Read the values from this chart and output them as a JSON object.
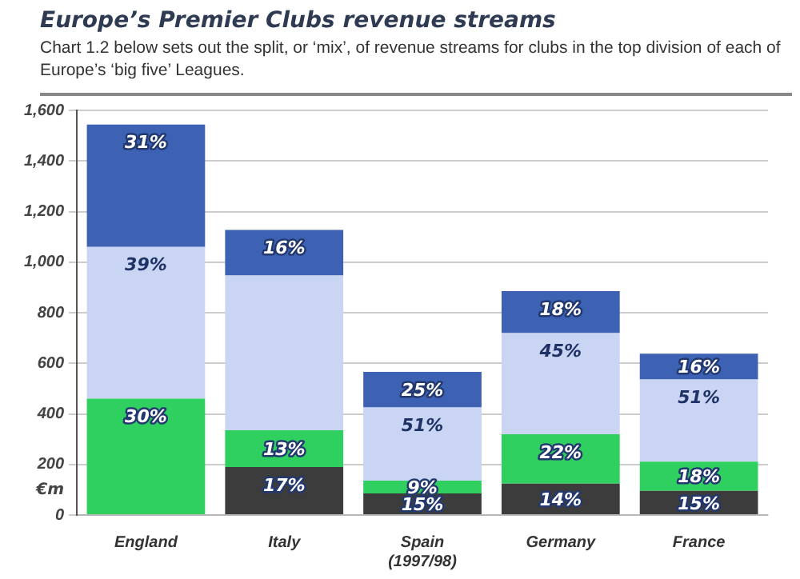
{
  "chart_data": {
    "type": "bar",
    "title": "Europe’s Premier Clubs revenue streams",
    "subtitle": "Chart 1.2 below sets out the split, or ‘mix’, of revenue streams for clubs in the top division of each of Europe’s ‘big five’ Leagues.",
    "ylabel": "€m",
    "categories": [
      "England",
      "Italy",
      "Spain (1997/98)",
      "Germany",
      "France"
    ],
    "stacked": true,
    "series": [
      {
        "color": "#3c3c3c",
        "values": [
          null,
          190,
          85,
          124,
          96
        ]
      },
      {
        "color": "#2fd060",
        "values": [
          460,
          145,
          51,
          195,
          115
        ]
      },
      {
        "color": "#c9d5f2",
        "values": [
          600,
          612,
          289,
          400,
          325
        ]
      },
      {
        "color": "#3d62b4",
        "values": [
          484,
          180,
          141,
          166,
          102
        ]
      }
    ],
    "annotations": [
      {
        "text": "31%",
        "x": "England",
        "y": 1544
      },
      {
        "text": "39%",
        "x": "England",
        "y": 1060
      },
      {
        "text": "30%",
        "x": "England",
        "y": 460
      },
      {
        "text": "16%",
        "x": "Italy",
        "y": 1127
      },
      {
        "text": "13%",
        "x": "Italy",
        "y": 335
      },
      {
        "text": "17%",
        "x": "Italy",
        "y": 190
      },
      {
        "text": "25%",
        "x": "Spain (1997/98)",
        "y": 566
      },
      {
        "text": "51%",
        "x": "Spain (1997/98)",
        "y": 425
      },
      {
        "text": "9%",
        "x": "Spain (1997/98)",
        "y": 136
      },
      {
        "text": "15%",
        "x": "Spain (1997/98)",
        "y": 85
      },
      {
        "text": "18%",
        "x": "Germany",
        "y": 885
      },
      {
        "text": "45%",
        "x": "Germany",
        "y": 719
      },
      {
        "text": "22%",
        "x": "Germany",
        "y": 319
      },
      {
        "text": "14%",
        "x": "Germany",
        "y": 124
      },
      {
        "text": "16%",
        "x": "France",
        "y": 638
      },
      {
        "text": "51%",
        "x": "France",
        "y": 536
      },
      {
        "text": "18%",
        "x": "France",
        "y": 211
      },
      {
        "text": "15%",
        "x": "France",
        "y": 96
      }
    ],
    "ylim": [
      0,
      1600
    ],
    "yticks": [
      0,
      {
        "value": 200,
        "label": "200"
      },
      {
        "value": 400,
        "label": "400"
      },
      {
        "value": 600,
        "label": "600"
      },
      {
        "value": 800,
        "label": "800"
      },
      {
        "value": 1000,
        "label": "1,000"
      },
      {
        "value": 1200,
        "label": "1,200"
      },
      {
        "value": 1400,
        "label": "1,400"
      },
      {
        "value": 1600,
        "label": "1,600"
      }
    ],
    "grid": "y"
  }
}
